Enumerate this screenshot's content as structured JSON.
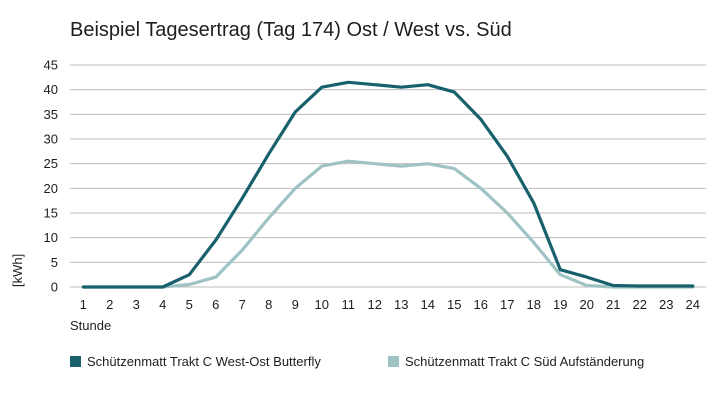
{
  "chart_data": {
    "type": "line",
    "title": "Beispiel Tagesertrag (Tag 174) Ost / West vs. Süd",
    "xlabel": "Stunde",
    "ylabel": "[kWh]",
    "ylim": [
      0,
      45
    ],
    "yticks": [
      "0",
      "5",
      "10",
      "15",
      "20",
      "25",
      "30",
      "35",
      "40",
      "45"
    ],
    "categories": [
      "1",
      "2",
      "3",
      "4",
      "5",
      "6",
      "7",
      "8",
      "9",
      "10",
      "11",
      "12",
      "13",
      "14",
      "15",
      "16",
      "17",
      "18",
      "19",
      "20",
      "21",
      "22",
      "23",
      "24"
    ],
    "grid": true,
    "legend_position": "bottom",
    "series": [
      {
        "name": "Schützenmatt Trakt C West-Ost Butterfly",
        "color": "#17606c",
        "values": [
          0,
          0,
          0,
          0,
          2.5,
          9.5,
          18,
          27,
          35.5,
          40.5,
          41.5,
          41,
          40.5,
          41,
          39.5,
          34,
          26.5,
          17,
          3.5,
          2,
          0.3,
          0.2,
          0.2,
          0.2
        ]
      },
      {
        "name": "Schützenmatt Trakt C Süd Aufständerung",
        "color": "#9fc2c4",
        "values": [
          0,
          0,
          0,
          0,
          0.5,
          2,
          7.5,
          14,
          20,
          24.5,
          25.5,
          25,
          24.5,
          25,
          24,
          20,
          15,
          9,
          2.5,
          0.3,
          0,
          0,
          0,
          0
        ]
      }
    ]
  }
}
